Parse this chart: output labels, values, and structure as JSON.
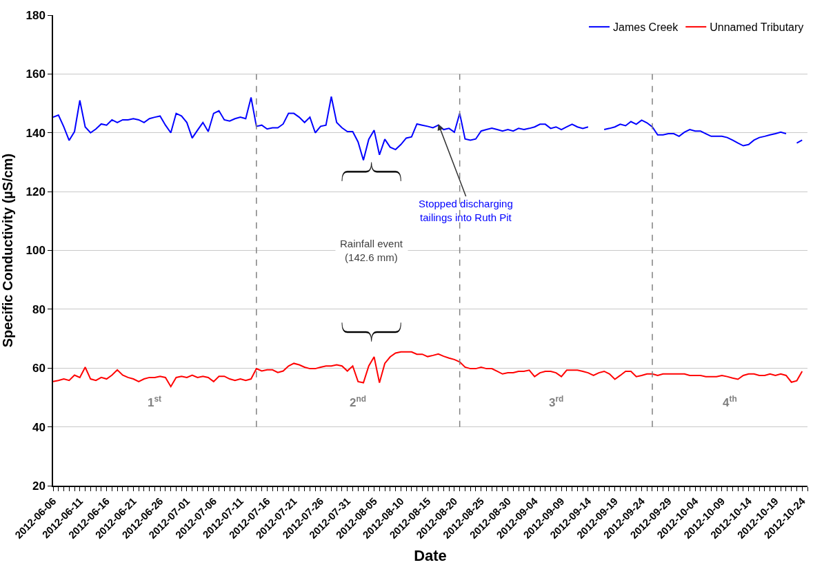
{
  "chart_data": {
    "type": "line",
    "xlabel": "Date",
    "ylabel": "Specific Conductivity (µS/cm)",
    "x": [
      "2012-06-06",
      "2012-06-07",
      "2012-06-08",
      "2012-06-09",
      "2012-06-10",
      "2012-06-11",
      "2012-06-12",
      "2012-06-13",
      "2012-06-14",
      "2012-06-15",
      "2012-06-16",
      "2012-06-17",
      "2012-06-18",
      "2012-06-19",
      "2012-06-20",
      "2012-06-21",
      "2012-06-22",
      "2012-06-23",
      "2012-06-24",
      "2012-06-25",
      "2012-06-26",
      "2012-06-27",
      "2012-06-28",
      "2012-06-29",
      "2012-06-30",
      "2012-07-01",
      "2012-07-02",
      "2012-07-03",
      "2012-07-04",
      "2012-07-05",
      "2012-07-06",
      "2012-07-07",
      "2012-07-08",
      "2012-07-09",
      "2012-07-10",
      "2012-07-11",
      "2012-07-12",
      "2012-07-13",
      "2012-07-14",
      "2012-07-15",
      "2012-07-16",
      "2012-07-17",
      "2012-07-18",
      "2012-07-19",
      "2012-07-20",
      "2012-07-21",
      "2012-07-22",
      "2012-07-23",
      "2012-07-24",
      "2012-07-25",
      "2012-07-26",
      "2012-07-27",
      "2012-07-28",
      "2012-07-29",
      "2012-07-30",
      "2012-07-31",
      "2012-08-01",
      "2012-08-02",
      "2012-08-03",
      "2012-08-04",
      "2012-08-05",
      "2012-08-06",
      "2012-08-07",
      "2012-08-08",
      "2012-08-09",
      "2012-08-10",
      "2012-08-11",
      "2012-08-12",
      "2012-08-13",
      "2012-08-14",
      "2012-08-15",
      "2012-08-16",
      "2012-08-17",
      "2012-08-18",
      "2012-08-19",
      "2012-08-20",
      "2012-08-21",
      "2012-08-22",
      "2012-08-23",
      "2012-08-24",
      "2012-08-25",
      "2012-08-26",
      "2012-08-27",
      "2012-08-28",
      "2012-08-29",
      "2012-08-30",
      "2012-08-31",
      "2012-09-01",
      "2012-09-02",
      "2012-09-03",
      "2012-09-04",
      "2012-09-05",
      "2012-09-06",
      "2012-09-07",
      "2012-09-08",
      "2012-09-09",
      "2012-09-10",
      "2012-09-11",
      "2012-09-12",
      "2012-09-13",
      "2012-09-14",
      "2012-09-15",
      "2012-09-16",
      "2012-09-17",
      "2012-09-18",
      "2012-09-19",
      "2012-09-20",
      "2012-09-21",
      "2012-09-22",
      "2012-09-23",
      "2012-09-24",
      "2012-09-25",
      "2012-09-26",
      "2012-09-27",
      "2012-09-28",
      "2012-09-29",
      "2012-09-30",
      "2012-10-01",
      "2012-10-02",
      "2012-10-03",
      "2012-10-04",
      "2012-10-05",
      "2012-10-06",
      "2012-10-07",
      "2012-10-08",
      "2012-10-09",
      "2012-10-10",
      "2012-10-11",
      "2012-10-12",
      "2012-10-13",
      "2012-10-14",
      "2012-10-15",
      "2012-10-16",
      "2012-10-17",
      "2012-10-18",
      "2012-10-19",
      "2012-10-20",
      "2012-10-21",
      "2012-10-22",
      "2012-10-23",
      "2012-10-24"
    ],
    "series": [
      {
        "name": "James Creek",
        "color": "#0000ff",
        "values": [
          145.3,
          146,
          142,
          137.4,
          140.4,
          151,
          142,
          140,
          141.3,
          143,
          142.6,
          144.4,
          143.5,
          144.4,
          144.4,
          144.8,
          144.4,
          143.5,
          144.8,
          145.3,
          145.7,
          142.6,
          140,
          146.6,
          145.7,
          143.5,
          138.2,
          140.9,
          143.5,
          140.4,
          146.6,
          147.5,
          144.4,
          144,
          144.8,
          145.3,
          144.8,
          152,
          142.2,
          142.6,
          141.3,
          141.7,
          141.7,
          143,
          146.6,
          146.6,
          145.3,
          143.5,
          145.3,
          140,
          142.2,
          142.6,
          152.3,
          143.5,
          141.7,
          140.4,
          140.4,
          136.9,
          130.7,
          137.8,
          140.9,
          132.5,
          137.8,
          135.1,
          134.3,
          136,
          138.2,
          138.6,
          143,
          142.6,
          142.2,
          141.7,
          142.6,
          141.1,
          141.5,
          140.2,
          146.6,
          137.9,
          137.5,
          137.9,
          140.6,
          141.1,
          141.6,
          141.1,
          140.6,
          141.1,
          140.6,
          141.5,
          141.1,
          141.5,
          142,
          142.9,
          142.9,
          141.5,
          142,
          141.1,
          142,
          142.9,
          142,
          141.5,
          142,
          null,
          null,
          141.1,
          141.5,
          142,
          142.9,
          142.4,
          143.8,
          142.9,
          144.3,
          143.4,
          142,
          139.3,
          139.3,
          139.7,
          139.7,
          138.8,
          140.2,
          141.1,
          140.6,
          140.6,
          139.7,
          138.8,
          138.8,
          138.8,
          138.4,
          137.5,
          136.5,
          135.6,
          136,
          137.5,
          138.4,
          138.8,
          139.3,
          139.7,
          140.2,
          139.7,
          null,
          136.5,
          137.5
        ]
      },
      {
        "name": "Unnamed Tributary",
        "color": "#ff0000",
        "values": [
          55.4,
          55.8,
          56.3,
          55.8,
          57.6,
          56.8,
          60.3,
          56.3,
          55.8,
          56.8,
          56.3,
          57.6,
          59.4,
          57.6,
          56.8,
          56.3,
          55.4,
          56.3,
          56.8,
          56.8,
          57.2,
          56.8,
          53.7,
          56.8,
          57.2,
          56.8,
          57.6,
          56.8,
          57.2,
          56.8,
          55.4,
          57.2,
          57.2,
          56.3,
          55.8,
          56.3,
          55.8,
          56.3,
          59.8,
          59,
          59.4,
          59.4,
          58.5,
          59,
          60.7,
          61.6,
          61.1,
          60.3,
          59.8,
          59.8,
          60.3,
          60.7,
          60.7,
          61.1,
          60.7,
          59,
          60.7,
          55.4,
          55,
          60.7,
          63.8,
          55,
          61.6,
          63.8,
          65.1,
          65.5,
          65.5,
          65.5,
          64.7,
          64.7,
          63.9,
          64.3,
          64.8,
          64,
          63.4,
          62.9,
          62.1,
          60.3,
          59.8,
          59.8,
          60.3,
          59.8,
          59.8,
          58.9,
          58,
          58.4,
          58.4,
          58.9,
          58.9,
          59.3,
          57.1,
          58.4,
          58.9,
          58.9,
          58.4,
          57.1,
          59.3,
          59.3,
          59.3,
          58.9,
          58.4,
          57.5,
          58.4,
          58.9,
          58,
          56.2,
          57.5,
          58.9,
          58.9,
          57.1,
          57.5,
          58,
          58,
          57.5,
          58,
          58,
          58,
          58,
          58,
          57.5,
          57.5,
          57.5,
          57.1,
          57.1,
          57.1,
          57.5,
          57.1,
          56.6,
          56.2,
          57.5,
          58,
          58,
          57.5,
          57.5,
          58,
          57.5,
          58,
          57.5,
          55.2,
          55.7,
          58.9
        ]
      }
    ],
    "xlim": [
      "2012-06-06",
      "2012-10-25"
    ],
    "xticks": [
      "2012-06-06",
      "2012-06-11",
      "2012-06-16",
      "2012-06-21",
      "2012-06-26",
      "2012-07-01",
      "2012-07-06",
      "2012-07-11",
      "2012-07-16",
      "2012-07-21",
      "2012-07-26",
      "2012-07-31",
      "2012-08-05",
      "2012-08-10",
      "2012-08-15",
      "2012-08-20",
      "2012-08-25",
      "2012-08-30",
      "2012-09-04",
      "2012-09-09",
      "2012-09-14",
      "2012-09-19",
      "2012-09-24",
      "2012-09-29",
      "2012-10-04",
      "2012-10-09",
      "2012-10-14",
      "2012-10-19",
      "2012-10-24"
    ],
    "ylim": [
      20,
      180
    ],
    "yticks": [
      20,
      40,
      60,
      80,
      100,
      120,
      140,
      160,
      180
    ],
    "grid": "y",
    "legend": "top right",
    "marker": "none",
    "line_style": "solid",
    "ref_lines": [
      {
        "axis": "x",
        "value": "2012-07-14",
        "color": "#808080",
        "line_style": "dashed"
      },
      {
        "axis": "x",
        "value": "2012-08-21",
        "color": "#808080",
        "line_style": "dashed"
      },
      {
        "axis": "x",
        "value": "2012-09-26",
        "color": "#808080",
        "line_style": "dashed"
      }
    ],
    "annotations": [
      "1$^{st}$",
      "2$^{nd}$",
      "3$^{rd}$",
      "4$^{th}$",
      "Rainfall event\n(142.6 mm)",
      {
        "text": "Stopped discharging\ntailings into Ruth Pit",
        "x": "2012-08-17",
        "y": 143
      }
    ]
  }
}
